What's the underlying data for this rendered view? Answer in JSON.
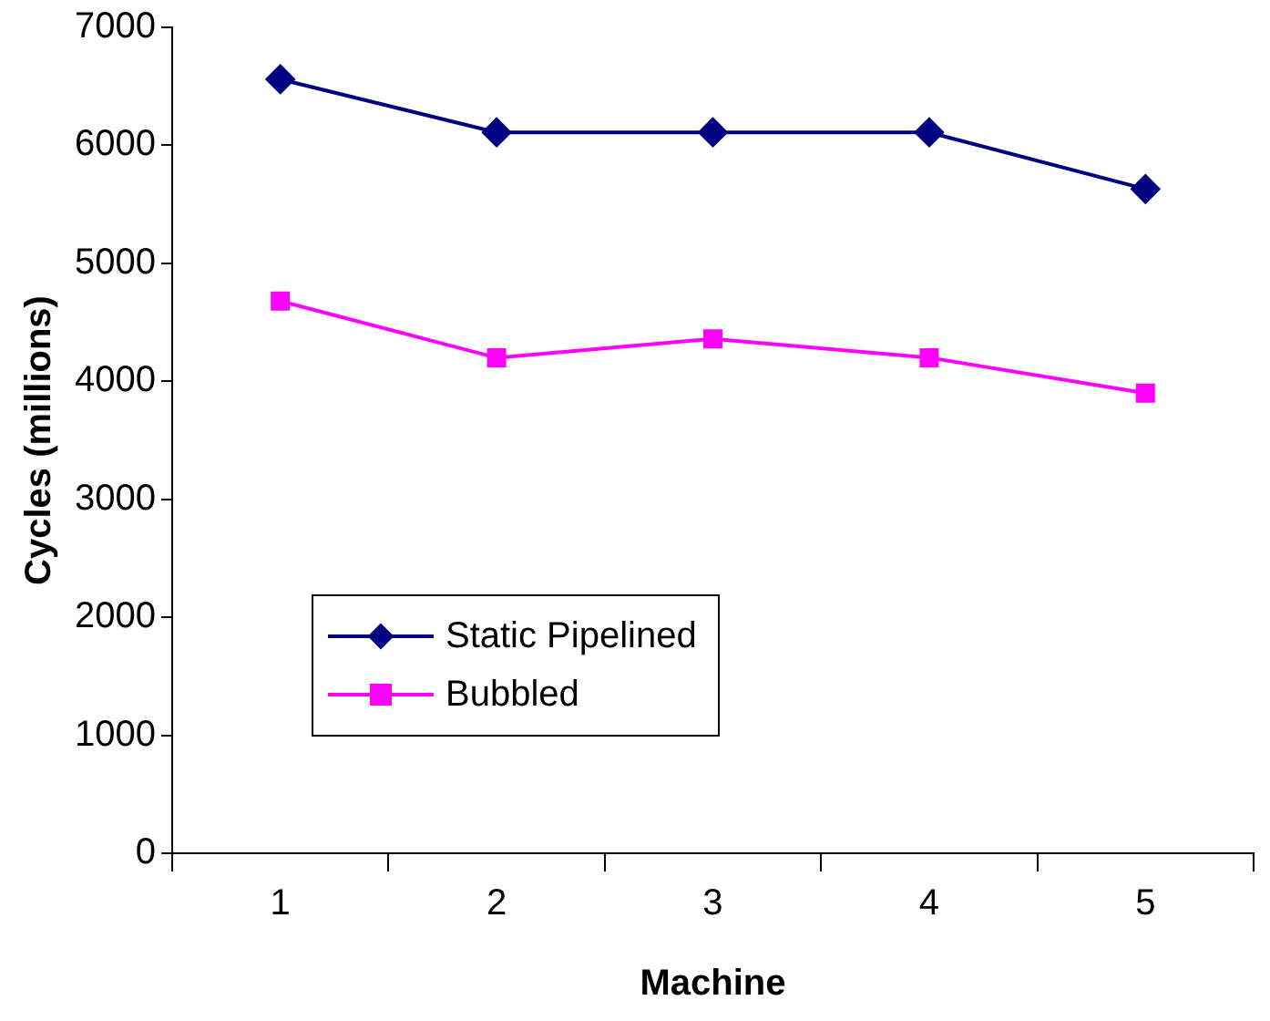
{
  "chart_data": {
    "type": "line",
    "xlabel": "Machine",
    "ylabel": "Cycles (millions)",
    "categories": [
      "1",
      "2",
      "3",
      "4",
      "5"
    ],
    "series": [
      {
        "name": "Static Pipelined",
        "color": "#000080",
        "marker": "diamond",
        "values": [
          6560,
          6110,
          6110,
          6110,
          5630
        ]
      },
      {
        "name": "Bubbled",
        "color": "#ff00ff",
        "marker": "square",
        "values": [
          4680,
          4200,
          4360,
          4200,
          3900
        ]
      }
    ],
    "ylim": [
      0,
      7000
    ],
    "yticks": [
      0,
      1000,
      2000,
      3000,
      4000,
      5000,
      6000,
      7000
    ],
    "grid": false,
    "legend": "bottom left",
    "line_style": "solid"
  }
}
